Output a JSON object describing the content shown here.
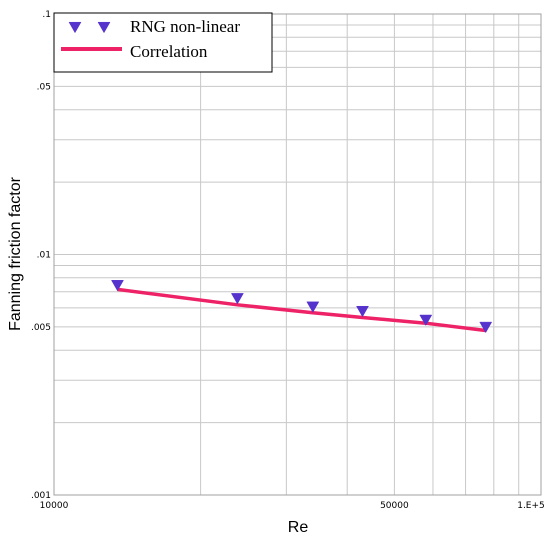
{
  "chart_data": {
    "type": "line",
    "xlabel": "Re",
    "ylabel": "Fanning friction factor",
    "x_scale": "log",
    "y_scale": "log",
    "xlim": [
      10000,
      100000
    ],
    "ylim": [
      0.001,
      0.1
    ],
    "grid": true,
    "x_ticks": [
      {
        "value": 10000,
        "label": "10000"
      },
      {
        "value": 50000,
        "label": "50000"
      },
      {
        "value": 100000,
        "label": "1.E+5"
      }
    ],
    "y_ticks": [
      {
        "value": 0.1,
        "label": ".1"
      },
      {
        "value": 0.05,
        "label": ".05"
      },
      {
        "value": 0.01,
        "label": ".01"
      },
      {
        "value": 0.005,
        "label": ".005"
      },
      {
        "value": 0.001,
        "label": ".001"
      }
    ],
    "legend": {
      "position": "top-left",
      "entries": [
        {
          "label": "RNG non-linear",
          "marker": "triangle-down",
          "color": "#5533cc"
        },
        {
          "label": "Correlation",
          "marker": "line",
          "color": "#ee2266"
        }
      ]
    },
    "series": [
      {
        "name": "RNG non-linear",
        "kind": "scatter",
        "marker": "triangle-down",
        "color": "#5533cc",
        "x": [
          13500,
          23800,
          34000,
          43000,
          58000,
          77000
        ],
        "y": [
          0.00746,
          0.00658,
          0.00607,
          0.00582,
          0.00535,
          0.005
        ]
      },
      {
        "name": "Correlation",
        "kind": "line",
        "color": "#ee2266",
        "x": [
          13500,
          23800,
          34000,
          43000,
          58000,
          77000
        ],
        "y": [
          0.00716,
          0.00618,
          0.00572,
          0.00547,
          0.00518,
          0.00483
        ]
      }
    ]
  }
}
